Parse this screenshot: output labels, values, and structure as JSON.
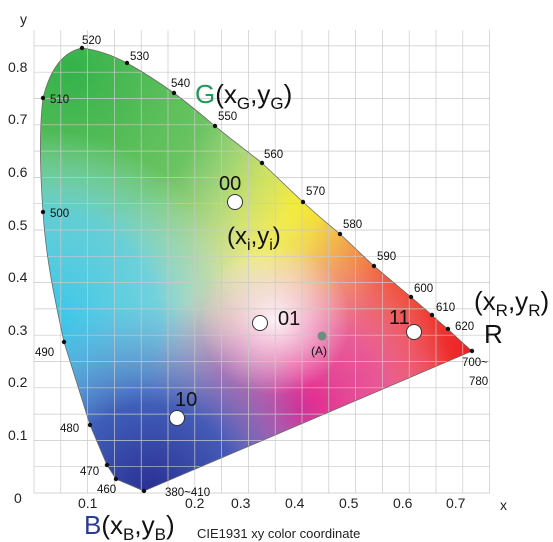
{
  "axes": {
    "x_label": "x",
    "y_label": "y",
    "x_ticks": [
      "0.1",
      "0.2",
      "0.3",
      "0.4",
      "0.5",
      "0.6",
      "0.7"
    ],
    "y_ticks": [
      "0",
      "0.1",
      "0.2",
      "0.3",
      "0.4",
      "0.5",
      "0.6",
      "0.7",
      "0.8"
    ]
  },
  "caption": "CIE1931 xy color coordinate",
  "wavelength_labels": {
    "w380": "380~410",
    "w460": "460",
    "w470": "470",
    "w480": "480",
    "w490": "490",
    "w500": "500",
    "w510": "510",
    "w520": "520",
    "w530": "530",
    "w540": "540",
    "w550": "550",
    "w560": "560",
    "w570": "570",
    "w580": "580",
    "w590": "590",
    "w600": "600",
    "w610": "610",
    "w620": "620",
    "w700_a": "700~",
    "w700_b": "780"
  },
  "primaries": {
    "G": {
      "letter": "G",
      "coord_open": "(x",
      "sub1": "G",
      "comma": ",y",
      "sub2": "G",
      "close": ")",
      "color": "#1f9a5a"
    },
    "R": {
      "letter": "R",
      "color": "#e02020",
      "coord_open": "(x",
      "sub1": "R",
      "comma": ",y",
      "sub2": "R",
      "close": ")"
    },
    "B": {
      "letter": "B",
      "color": "#2a3a9a",
      "coord_open": "(x",
      "sub1": "B",
      "comma": ",y",
      "sub2": "B",
      "close": ")"
    }
  },
  "generic_point": {
    "open": "(x",
    "sub1": "i",
    "comma": ",y",
    "sub2": "i",
    "close": ")"
  },
  "points": {
    "p00": {
      "label": "00"
    },
    "p01": {
      "label": "01"
    },
    "p10": {
      "label": "10"
    },
    "p11": {
      "label": "11"
    },
    "pA": {
      "label": "(A)"
    }
  },
  "colors": {
    "green": "#3db54a",
    "cyan": "#35c4e8",
    "blue": "#2b3d9d",
    "red": "#ee2a24",
    "yellow": "#f5e51c",
    "magenta": "#e8208a",
    "grid": "#c9c9c9",
    "point_A": "#6b8f80"
  }
}
